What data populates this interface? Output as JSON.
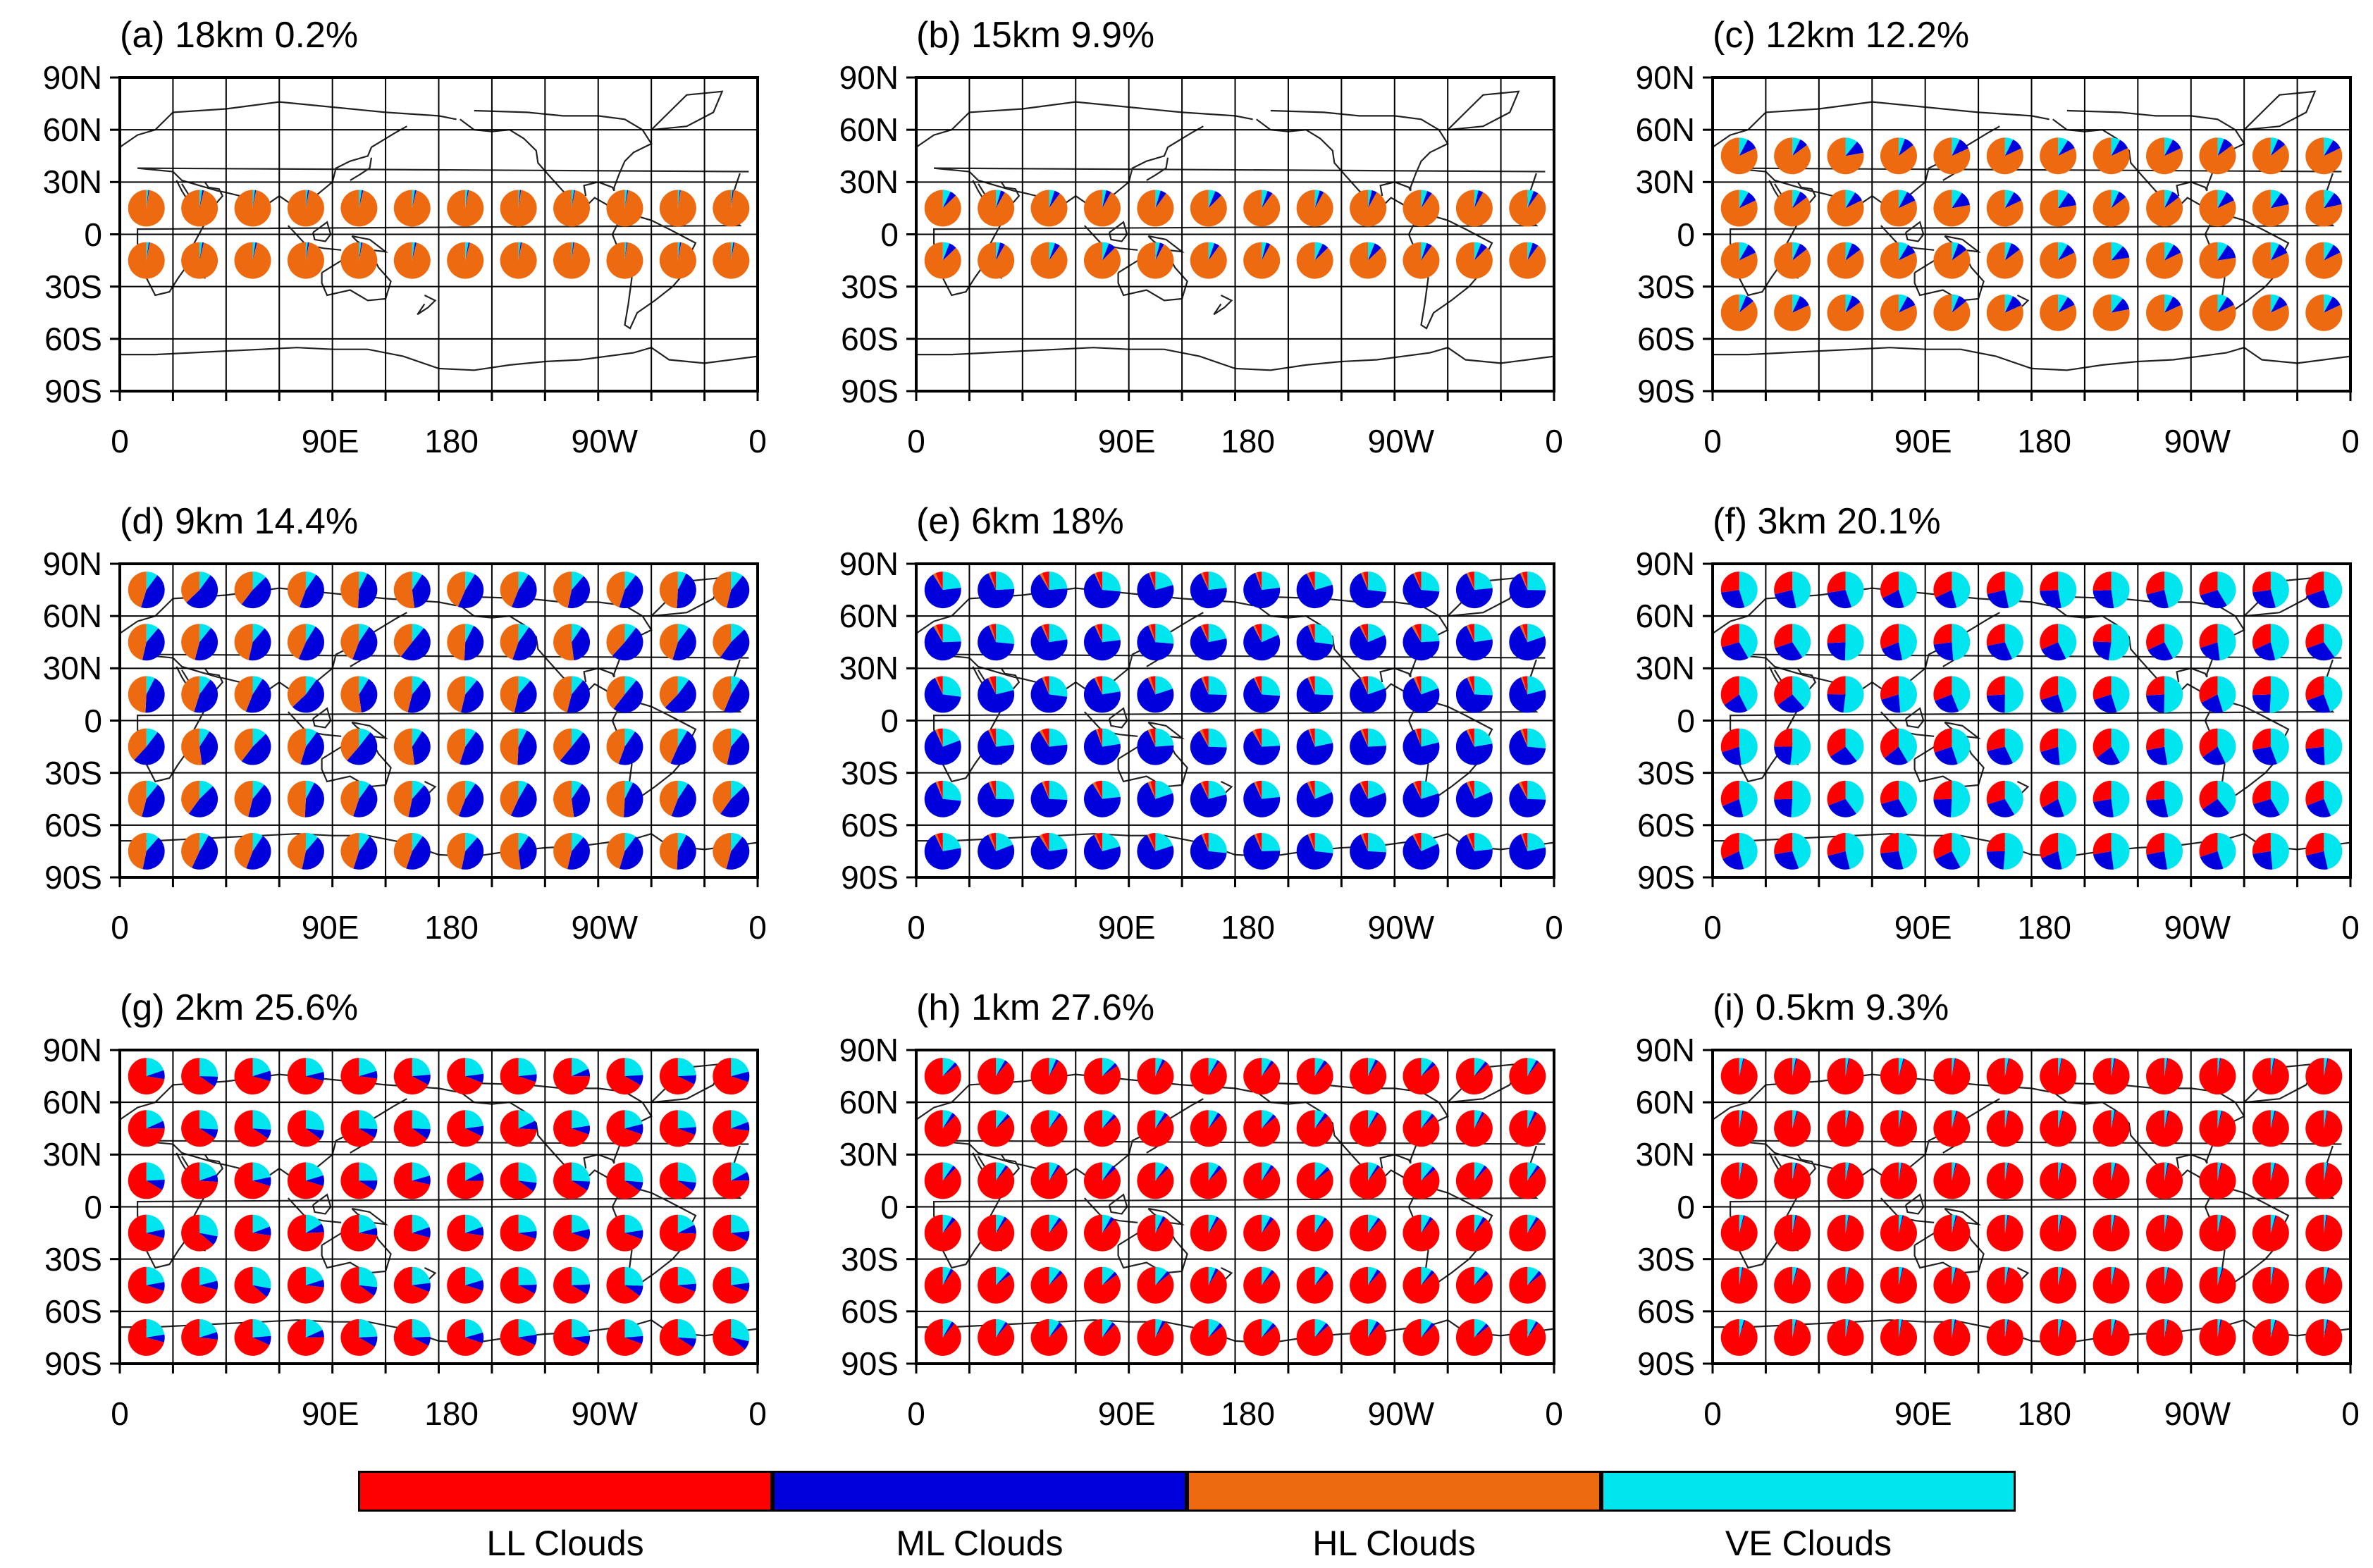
{
  "colors": {
    "LL": "#ff0000",
    "ML": "#0000dd",
    "HL": "#ee6a10",
    "VE": "#00e5ee",
    "grid": "#000000",
    "coast": "#222222"
  },
  "axes": {
    "lat_labels": [
      "90N",
      "60N",
      "30N",
      "0",
      "30S",
      "60S",
      "90S"
    ],
    "lon_labels": [
      "0",
      "90E",
      "180",
      "90W",
      "0"
    ]
  },
  "legend": [
    {
      "key": "LL",
      "label": "LL Clouds"
    },
    {
      "key": "ML",
      "label": "ML Clouds"
    },
    {
      "key": "HL",
      "label": "HL Clouds"
    },
    {
      "key": "VE",
      "label": "VE Clouds"
    }
  ],
  "panels": [
    {
      "title": "(a) 18km 0.2%",
      "level_km": 18,
      "percent": 0.2,
      "pie_lats": [
        15,
        -15
      ],
      "mix": {
        "LL": 0,
        "ML": 1,
        "HL": 97,
        "VE": 2
      }
    },
    {
      "title": "(b) 15km 9.9%",
      "level_km": 15,
      "percent": 9.9,
      "pie_lats": [
        15,
        -15
      ],
      "mix": {
        "LL": 0,
        "ML": 5,
        "HL": 90,
        "VE": 5
      }
    },
    {
      "title": "(c) 12km 12.2%",
      "level_km": 12,
      "percent": 12.2,
      "pie_lats": [
        45,
        15,
        -15,
        -45
      ],
      "mix": {
        "LL": 0,
        "ML": 10,
        "HL": 82,
        "VE": 8
      }
    },
    {
      "title": "(d) 9km 14.4%",
      "level_km": 9,
      "percent": 14.4,
      "pie_lats": [
        75,
        45,
        15,
        -15,
        -45,
        -75
      ],
      "mix": {
        "LL": 0,
        "ML": 45,
        "HL": 45,
        "VE": 10
      }
    },
    {
      "title": "(e) 6km 18%",
      "level_km": 6,
      "percent": 18,
      "pie_lats": [
        75,
        45,
        15,
        -15,
        -45,
        -75
      ],
      "mix": {
        "LL": 5,
        "ML": 70,
        "HL": 2,
        "VE": 23
      }
    },
    {
      "title": "(f) 3km 20.1%",
      "level_km": 3,
      "percent": 20.1,
      "pie_lats": [
        75,
        45,
        15,
        -15,
        -45,
        -75
      ],
      "mix": {
        "LL": 30,
        "ML": 25,
        "HL": 0,
        "VE": 45
      }
    },
    {
      "title": "(g) 2km 25.6%",
      "level_km": 2,
      "percent": 25.6,
      "pie_lats": [
        75,
        45,
        15,
        -15,
        -45,
        -75
      ],
      "mix": {
        "LL": 70,
        "ML": 8,
        "HL": 0,
        "VE": 22
      }
    },
    {
      "title": "(h) 1km 27.6%",
      "level_km": 1,
      "percent": 27.6,
      "pie_lats": [
        75,
        45,
        15,
        -15,
        -45,
        -75
      ],
      "mix": {
        "LL": 88,
        "ML": 3,
        "HL": 0,
        "VE": 9
      }
    },
    {
      "title": "(i) 0.5km 9.3%",
      "level_km": 0.5,
      "percent": 9.3,
      "pie_lats": [
        75,
        45,
        15,
        -15,
        -45,
        -75
      ],
      "mix": {
        "LL": 96,
        "ML": 1,
        "HL": 0,
        "VE": 3
      }
    }
  ],
  "pie_lons": [
    15,
    45,
    75,
    105,
    135,
    165,
    195,
    225,
    255,
    285,
    315,
    345
  ]
}
